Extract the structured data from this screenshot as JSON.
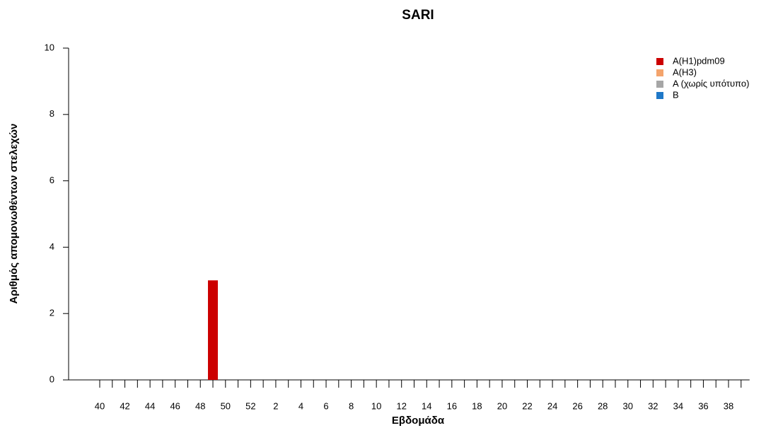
{
  "chart_data": {
    "type": "bar",
    "stacked": true,
    "title": "SARI",
    "x_label": "Εβδομάδα",
    "y_label": "Αριθμός απομονωθέντων στελεχών",
    "categories": [
      "40",
      null,
      "42",
      null,
      "44",
      null,
      "46",
      null,
      "48",
      null,
      "50",
      null,
      "52",
      null,
      "2",
      null,
      "4",
      null,
      "6",
      null,
      "8",
      null,
      "10",
      null,
      "12",
      null,
      "14",
      null,
      "16",
      null,
      "18",
      null,
      "20",
      null,
      "22",
      null,
      "24",
      null,
      "26",
      null,
      "28",
      null,
      "30",
      null,
      "32",
      null,
      "34",
      null,
      "36",
      null,
      "38",
      null
    ],
    "series": [
      {
        "name": "A(H1)pdm09",
        "color": "#cc0000",
        "values": [
          0,
          0,
          0,
          0,
          0,
          0,
          0,
          0,
          0,
          3,
          0,
          0,
          0,
          0,
          0,
          0,
          0,
          0,
          0,
          0,
          0,
          0,
          0,
          0,
          0,
          0,
          0,
          0,
          0,
          0,
          0,
          0,
          0,
          0,
          0,
          0,
          0,
          0,
          0,
          0,
          0,
          0,
          0,
          0,
          0,
          0,
          0,
          0,
          0,
          0,
          0,
          0
        ]
      },
      {
        "name": "A(H3)",
        "color": "#f4a46c",
        "values": [
          0,
          0,
          0,
          0,
          0,
          0,
          0,
          0,
          0,
          0,
          0,
          0,
          0,
          0,
          0,
          0,
          0,
          0,
          0,
          0,
          0,
          0,
          0,
          0,
          0,
          0,
          0,
          0,
          0,
          0,
          0,
          0,
          0,
          0,
          0,
          0,
          0,
          0,
          0,
          0,
          0,
          0,
          0,
          0,
          0,
          0,
          0,
          0,
          0,
          0,
          0,
          0
        ]
      },
      {
        "name": "A (χωρίς υπότυπο)",
        "color": "#a6a6a6",
        "values": [
          0,
          0,
          0,
          0,
          0,
          0,
          0,
          0,
          0,
          0,
          0,
          0,
          0,
          0,
          0,
          0,
          0,
          0,
          0,
          0,
          0,
          0,
          0,
          0,
          0,
          0,
          0,
          0,
          0,
          0,
          0,
          0,
          0,
          0,
          0,
          0,
          0,
          0,
          0,
          0,
          0,
          0,
          0,
          0,
          0,
          0,
          0,
          0,
          0,
          0,
          0,
          0
        ]
      },
      {
        "name": "B",
        "color": "#1f78c8",
        "values": [
          0,
          0,
          0,
          0,
          0,
          0,
          0,
          0,
          0,
          0,
          0,
          0,
          0,
          0,
          0,
          0,
          0,
          0,
          0,
          0,
          0,
          0,
          0,
          0,
          0,
          0,
          0,
          0,
          0,
          0,
          0,
          0,
          0,
          0,
          0,
          0,
          0,
          0,
          0,
          0,
          0,
          0,
          0,
          0,
          0,
          0,
          0,
          0,
          0,
          0,
          0,
          0
        ]
      }
    ],
    "ylim": [
      0,
      10
    ],
    "yticks": [
      0,
      2,
      4,
      6,
      8,
      10
    ],
    "grid": false,
    "legend": "top-right"
  }
}
